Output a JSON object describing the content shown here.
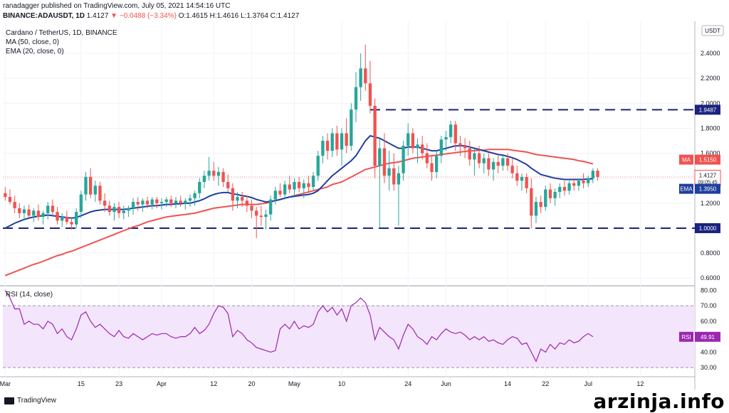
{
  "header": {
    "published": "ranadagger published on TradingView.com, July 05, 2021 14:54:16 UTC",
    "symbol": "BINANCE:ADAUSDT, 1D",
    "last": "1.4127",
    "change": "▼ −0.0488 (−3.34%)",
    "ohlc": "O:1.4615 H:1.4616 L:1.3764 C:1.4127"
  },
  "legend": {
    "title": "Cardano / TetherUS, 1D, BINANCE",
    "ma": "MA (50, close, 0)",
    "ema": "EMA (20, close, 0)",
    "rsi": "RSI (14, close)"
  },
  "currency": "USDT",
  "footer": {
    "logo": "TradingView",
    "watermark": "arzinja.info"
  },
  "tags": {
    "resistance": "1.9487",
    "support": "1.0000",
    "ma_label": "MA",
    "ma_value": "1.5150",
    "price_value": "1.4127",
    "countdown": "09:05:45",
    "ema_label": "EMA",
    "ema_value": "1.3950",
    "rsi_label": "RSI",
    "rsi_value": "49.91"
  },
  "colors": {
    "up": "#26a69a",
    "down": "#ef5350",
    "ma": "#ef5350",
    "ema": "#1f3f9e",
    "rsi": "#9c27b0",
    "rsi_band": "#f3e5fb",
    "level": "#1a237e"
  },
  "chart_data": [
    {
      "type": "candlestick",
      "ylim": [
        0.55,
        2.6
      ],
      "yticks": [
        "2.4000",
        "2.2000",
        "2.0000",
        "1.8000",
        "1.6000",
        "1.4000",
        "1.2000",
        "1.0000",
        "0.8000",
        "0.6000"
      ],
      "ytick_values": [
        2.4,
        2.2,
        2.0,
        1.8,
        1.6,
        1.4,
        1.2,
        1.0,
        0.8,
        0.6
      ],
      "xticks": [
        "Mar",
        "15",
        "23",
        "Apr",
        "12",
        "20",
        "May",
        "10",
        "24",
        "Jun",
        "14",
        "22",
        "Jul",
        "12"
      ],
      "xtick_index": [
        0,
        16,
        24,
        33,
        44,
        52,
        61,
        71,
        85,
        93,
        106,
        114,
        123,
        134
      ],
      "horizontal_levels": [
        1.9487,
        1.0
      ],
      "candles": [
        [
          1.28,
          1.33,
          1.22,
          1.25
        ],
        [
          1.25,
          1.31,
          1.19,
          1.21
        ],
        [
          1.21,
          1.26,
          1.12,
          1.16
        ],
        [
          1.16,
          1.2,
          1.08,
          1.12
        ],
        [
          1.12,
          1.18,
          1.06,
          1.15
        ],
        [
          1.15,
          1.19,
          1.08,
          1.1
        ],
        [
          1.1,
          1.16,
          1.05,
          1.14
        ],
        [
          1.14,
          1.19,
          1.06,
          1.09
        ],
        [
          1.09,
          1.14,
          1.03,
          1.12
        ],
        [
          1.12,
          1.21,
          1.07,
          1.18
        ],
        [
          1.18,
          1.23,
          1.1,
          1.13
        ],
        [
          1.13,
          1.17,
          1.03,
          1.06
        ],
        [
          1.06,
          1.12,
          1.01,
          1.09
        ],
        [
          1.09,
          1.14,
          1.03,
          1.05
        ],
        [
          1.05,
          1.09,
          0.99,
          1.03
        ],
        [
          1.03,
          1.16,
          1.0,
          1.13
        ],
        [
          1.13,
          1.3,
          1.08,
          1.27
        ],
        [
          1.27,
          1.45,
          1.22,
          1.41
        ],
        [
          1.41,
          1.48,
          1.24,
          1.27
        ],
        [
          1.27,
          1.38,
          1.21,
          1.34
        ],
        [
          1.34,
          1.37,
          1.19,
          1.22
        ],
        [
          1.22,
          1.28,
          1.13,
          1.18
        ],
        [
          1.18,
          1.22,
          1.1,
          1.13
        ],
        [
          1.13,
          1.2,
          1.06,
          1.17
        ],
        [
          1.17,
          1.21,
          1.08,
          1.12
        ],
        [
          1.12,
          1.18,
          1.07,
          1.14
        ],
        [
          1.14,
          1.18,
          1.09,
          1.16
        ],
        [
          1.16,
          1.24,
          1.11,
          1.21
        ],
        [
          1.21,
          1.25,
          1.14,
          1.19
        ],
        [
          1.19,
          1.24,
          1.13,
          1.22
        ],
        [
          1.22,
          1.25,
          1.16,
          1.19
        ],
        [
          1.19,
          1.25,
          1.15,
          1.23
        ],
        [
          1.23,
          1.25,
          1.16,
          1.2
        ],
        [
          1.2,
          1.24,
          1.15,
          1.21
        ],
        [
          1.21,
          1.25,
          1.17,
          1.23
        ],
        [
          1.23,
          1.26,
          1.17,
          1.2
        ],
        [
          1.2,
          1.25,
          1.16,
          1.22
        ],
        [
          1.22,
          1.26,
          1.17,
          1.2
        ],
        [
          1.2,
          1.24,
          1.15,
          1.22
        ],
        [
          1.22,
          1.27,
          1.17,
          1.24
        ],
        [
          1.24,
          1.3,
          1.18,
          1.28
        ],
        [
          1.28,
          1.4,
          1.24,
          1.37
        ],
        [
          1.37,
          1.46,
          1.32,
          1.42
        ],
        [
          1.42,
          1.57,
          1.38,
          1.46
        ],
        [
          1.46,
          1.53,
          1.38,
          1.42
        ],
        [
          1.42,
          1.49,
          1.34,
          1.45
        ],
        [
          1.45,
          1.48,
          1.33,
          1.37
        ],
        [
          1.37,
          1.43,
          1.29,
          1.32
        ],
        [
          1.32,
          1.36,
          1.14,
          1.22
        ],
        [
          1.22,
          1.29,
          1.16,
          1.25
        ],
        [
          1.25,
          1.29,
          1.17,
          1.22
        ],
        [
          1.22,
          1.26,
          1.13,
          1.18
        ],
        [
          1.18,
          1.23,
          1.08,
          1.14
        ],
        [
          1.14,
          1.17,
          0.92,
          1.1
        ],
        [
          1.1,
          1.18,
          1.02,
          1.09
        ],
        [
          1.09,
          1.15,
          0.99,
          1.11
        ],
        [
          1.11,
          1.26,
          1.06,
          1.23
        ],
        [
          1.23,
          1.33,
          1.19,
          1.3
        ],
        [
          1.3,
          1.36,
          1.25,
          1.27
        ],
        [
          1.27,
          1.38,
          1.23,
          1.35
        ],
        [
          1.35,
          1.42,
          1.28,
          1.31
        ],
        [
          1.31,
          1.4,
          1.26,
          1.37
        ],
        [
          1.37,
          1.41,
          1.29,
          1.32
        ],
        [
          1.32,
          1.39,
          1.24,
          1.36
        ],
        [
          1.36,
          1.42,
          1.28,
          1.33
        ],
        [
          1.33,
          1.45,
          1.3,
          1.42
        ],
        [
          1.42,
          1.62,
          1.38,
          1.58
        ],
        [
          1.58,
          1.74,
          1.52,
          1.7
        ],
        [
          1.7,
          1.76,
          1.55,
          1.62
        ],
        [
          1.62,
          1.8,
          1.57,
          1.76
        ],
        [
          1.76,
          1.82,
          1.58,
          1.63
        ],
        [
          1.63,
          1.8,
          1.5,
          1.76
        ],
        [
          1.76,
          1.88,
          1.6,
          1.66
        ],
        [
          1.66,
          2.0,
          1.62,
          1.95
        ],
        [
          1.95,
          2.25,
          1.85,
          2.13
        ],
        [
          2.13,
          2.4,
          2.02,
          2.28
        ],
        [
          2.28,
          2.47,
          2.1,
          2.16
        ],
        [
          2.16,
          2.34,
          1.92,
          1.98
        ],
        [
          1.98,
          2.04,
          1.4,
          1.5
        ],
        [
          1.5,
          1.72,
          1.0,
          1.64
        ],
        [
          1.64,
          1.76,
          1.36,
          1.42
        ],
        [
          1.42,
          1.62,
          1.3,
          1.48
        ],
        [
          1.48,
          1.6,
          1.3,
          1.35
        ],
        [
          1.35,
          1.5,
          1.02,
          1.44
        ],
        [
          1.44,
          1.7,
          1.38,
          1.66
        ],
        [
          1.66,
          1.84,
          1.58,
          1.76
        ],
        [
          1.76,
          1.8,
          1.6,
          1.64
        ],
        [
          1.64,
          1.72,
          1.52,
          1.67
        ],
        [
          1.67,
          1.74,
          1.55,
          1.6
        ],
        [
          1.6,
          1.68,
          1.48,
          1.52
        ],
        [
          1.52,
          1.58,
          1.38,
          1.45
        ],
        [
          1.45,
          1.62,
          1.4,
          1.58
        ],
        [
          1.58,
          1.74,
          1.52,
          1.71
        ],
        [
          1.71,
          1.78,
          1.62,
          1.73
        ],
        [
          1.73,
          1.86,
          1.68,
          1.83
        ],
        [
          1.83,
          1.86,
          1.62,
          1.68
        ],
        [
          1.68,
          1.74,
          1.58,
          1.66
        ],
        [
          1.66,
          1.72,
          1.56,
          1.64
        ],
        [
          1.64,
          1.7,
          1.5,
          1.55
        ],
        [
          1.55,
          1.64,
          1.42,
          1.6
        ],
        [
          1.6,
          1.66,
          1.48,
          1.52
        ],
        [
          1.52,
          1.6,
          1.44,
          1.56
        ],
        [
          1.56,
          1.6,
          1.42,
          1.47
        ],
        [
          1.47,
          1.56,
          1.38,
          1.53
        ],
        [
          1.53,
          1.58,
          1.44,
          1.5
        ],
        [
          1.5,
          1.58,
          1.46,
          1.56
        ],
        [
          1.56,
          1.6,
          1.46,
          1.5
        ],
        [
          1.5,
          1.56,
          1.4,
          1.44
        ],
        [
          1.44,
          1.5,
          1.34,
          1.38
        ],
        [
          1.38,
          1.44,
          1.3,
          1.41
        ],
        [
          1.41,
          1.44,
          1.28,
          1.32
        ],
        [
          1.32,
          1.4,
          1.0,
          1.1
        ],
        [
          1.1,
          1.25,
          1.04,
          1.21
        ],
        [
          1.21,
          1.26,
          1.12,
          1.17
        ],
        [
          1.17,
          1.34,
          1.14,
          1.31
        ],
        [
          1.31,
          1.36,
          1.2,
          1.24
        ],
        [
          1.24,
          1.32,
          1.18,
          1.29
        ],
        [
          1.29,
          1.36,
          1.24,
          1.33
        ],
        [
          1.33,
          1.38,
          1.26,
          1.3
        ],
        [
          1.3,
          1.38,
          1.27,
          1.36
        ],
        [
          1.36,
          1.4,
          1.3,
          1.34
        ],
        [
          1.34,
          1.4,
          1.3,
          1.38
        ],
        [
          1.38,
          1.44,
          1.32,
          1.36
        ],
        [
          1.36,
          1.42,
          1.33,
          1.4
        ],
        [
          1.4,
          1.48,
          1.36,
          1.46
        ],
        [
          1.46,
          1.48,
          1.38,
          1.41
        ]
      ],
      "ma50": [
        0.62,
        0.635,
        0.65,
        0.665,
        0.68,
        0.695,
        0.71,
        0.72,
        0.735,
        0.75,
        0.765,
        0.78,
        0.79,
        0.805,
        0.815,
        0.83,
        0.845,
        0.86,
        0.875,
        0.89,
        0.905,
        0.92,
        0.935,
        0.95,
        0.965,
        0.98,
        0.995,
        1.01,
        1.02,
        1.035,
        1.05,
        1.06,
        1.07,
        1.08,
        1.09,
        1.095,
        1.1,
        1.105,
        1.11,
        1.115,
        1.12,
        1.13,
        1.14,
        1.15,
        1.16,
        1.165,
        1.17,
        1.175,
        1.18,
        1.185,
        1.19,
        1.19,
        1.19,
        1.19,
        1.195,
        1.2,
        1.21,
        1.22,
        1.23,
        1.24,
        1.25,
        1.26,
        1.27,
        1.28,
        1.29,
        1.3,
        1.31,
        1.32,
        1.33,
        1.35,
        1.36,
        1.37,
        1.39,
        1.41,
        1.43,
        1.45,
        1.47,
        1.48,
        1.49,
        1.5,
        1.51,
        1.52,
        1.525,
        1.53,
        1.54,
        1.55,
        1.56,
        1.565,
        1.57,
        1.575,
        1.58,
        1.585,
        1.59,
        1.595,
        1.6,
        1.605,
        1.61,
        1.615,
        1.62,
        1.62,
        1.625,
        1.625,
        1.63,
        1.63,
        1.63,
        1.63,
        1.63,
        1.625,
        1.62,
        1.615,
        1.61,
        1.6,
        1.59,
        1.585,
        1.58,
        1.575,
        1.57,
        1.565,
        1.56,
        1.555,
        1.55,
        1.54,
        1.535,
        1.525,
        1.515
      ],
      "ema20": [
        1.0,
        1.02,
        1.04,
        1.055,
        1.07,
        1.08,
        1.09,
        1.095,
        1.1,
        1.105,
        1.1,
        1.095,
        1.09,
        1.085,
        1.08,
        1.085,
        1.1,
        1.115,
        1.13,
        1.14,
        1.145,
        1.15,
        1.15,
        1.15,
        1.15,
        1.15,
        1.155,
        1.16,
        1.165,
        1.17,
        1.175,
        1.18,
        1.18,
        1.185,
        1.19,
        1.19,
        1.195,
        1.195,
        1.2,
        1.2,
        1.21,
        1.22,
        1.235,
        1.255,
        1.27,
        1.28,
        1.285,
        1.285,
        1.275,
        1.27,
        1.26,
        1.255,
        1.245,
        1.23,
        1.22,
        1.21,
        1.215,
        1.22,
        1.23,
        1.24,
        1.25,
        1.255,
        1.26,
        1.265,
        1.27,
        1.28,
        1.3,
        1.34,
        1.38,
        1.42,
        1.45,
        1.48,
        1.51,
        1.54,
        1.58,
        1.64,
        1.7,
        1.74,
        1.73,
        1.72,
        1.7,
        1.68,
        1.66,
        1.64,
        1.64,
        1.65,
        1.65,
        1.65,
        1.64,
        1.63,
        1.62,
        1.62,
        1.63,
        1.64,
        1.65,
        1.66,
        1.66,
        1.66,
        1.65,
        1.64,
        1.63,
        1.62,
        1.61,
        1.6,
        1.59,
        1.585,
        1.575,
        1.565,
        1.55,
        1.53,
        1.51,
        1.48,
        1.455,
        1.43,
        1.42,
        1.41,
        1.4,
        1.395,
        1.39,
        1.39,
        1.39,
        1.39,
        1.39,
        1.395,
        1.395
      ]
    },
    {
      "type": "line",
      "title": "RSI (14, close)",
      "ylim": [
        25,
        82
      ],
      "yticks": [
        "80.00",
        "70.00",
        "60.00",
        "50.00",
        "40.00",
        "30.00"
      ],
      "ytick_values": [
        80,
        70,
        60,
        50,
        40,
        30
      ],
      "band": [
        30,
        70
      ],
      "values": [
        80,
        75,
        68,
        68,
        58,
        60,
        58,
        58,
        55,
        60,
        58,
        52,
        55,
        50,
        48,
        55,
        64,
        66,
        60,
        56,
        58,
        55,
        52,
        50,
        54,
        50,
        49,
        52,
        50,
        48,
        50,
        52,
        51,
        52,
        52,
        50,
        49,
        50,
        50,
        52,
        56,
        52,
        54,
        58,
        65,
        70,
        69,
        65,
        50,
        54,
        52,
        48,
        46,
        43,
        42,
        41,
        40,
        41,
        55,
        58,
        55,
        60,
        55,
        57,
        56,
        58,
        66,
        70,
        66,
        69,
        64,
        68,
        60,
        70,
        72,
        75,
        72,
        64,
        48,
        56,
        53,
        50,
        48,
        42,
        51,
        58,
        55,
        50,
        48,
        45,
        50,
        48,
        52,
        55,
        53,
        52,
        53,
        51,
        48,
        50,
        48,
        50,
        47,
        48,
        46,
        45,
        48,
        50,
        49,
        45,
        46,
        40,
        34,
        42,
        40,
        45,
        42,
        46,
        45,
        48,
        46,
        47,
        50,
        52,
        50
      ]
    }
  ]
}
